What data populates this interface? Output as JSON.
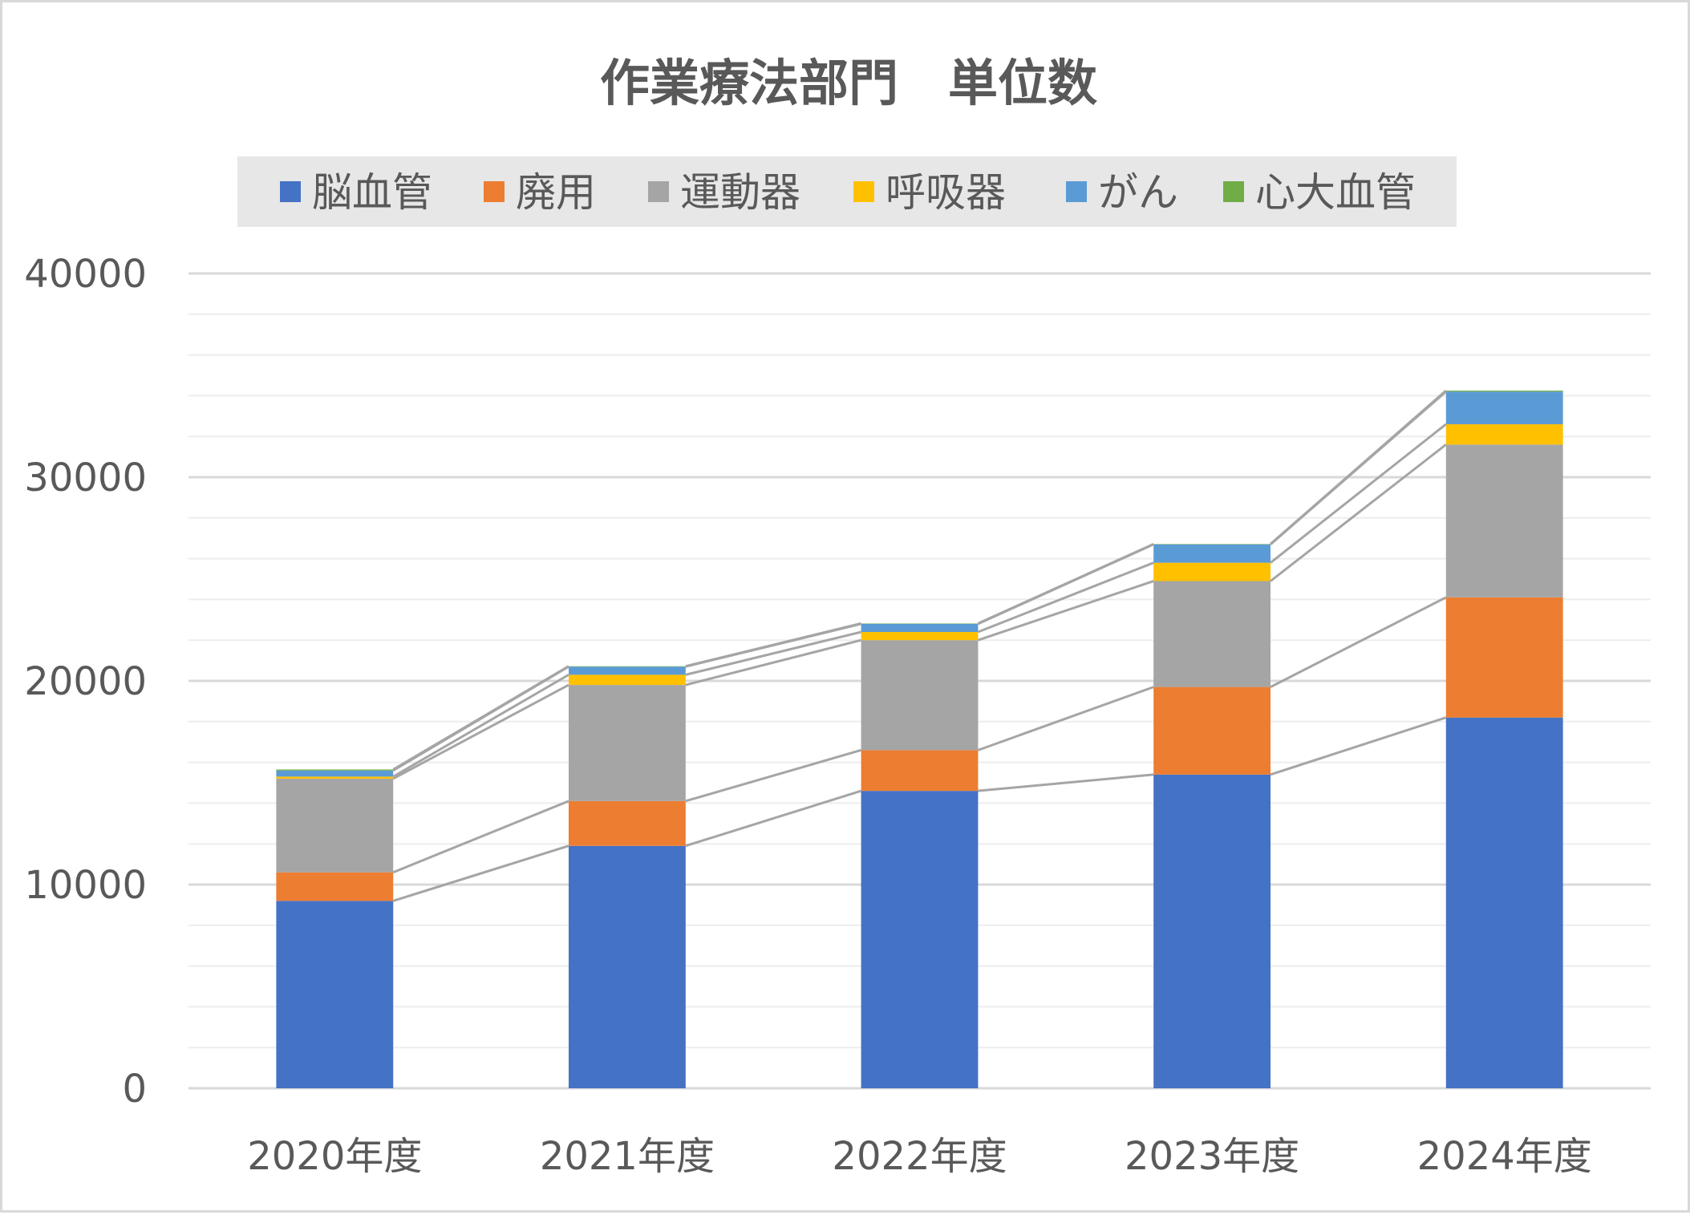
{
  "chart_data": {
    "type": "bar",
    "stacked": true,
    "title": "作業療法部門　単位数",
    "categories": [
      "2020年度",
      "2021年度",
      "2022年度",
      "2023年度",
      "2024年度"
    ],
    "series": [
      {
        "name": "脳血管",
        "color": "#4472c4",
        "values": [
          9200,
          11900,
          14600,
          15400,
          18200
        ]
      },
      {
        "name": "廃用",
        "color": "#ed7d31",
        "values": [
          1400,
          2200,
          2000,
          4300,
          5900
        ]
      },
      {
        "name": "運動器",
        "color": "#a5a5a5",
        "values": [
          4600,
          5700,
          5400,
          5200,
          7500
        ]
      },
      {
        "name": "呼吸器",
        "color": "#ffc000",
        "values": [
          100,
          500,
          400,
          900,
          1000
        ]
      },
      {
        "name": "がん",
        "color": "#5b9bd5",
        "values": [
          300,
          400,
          400,
          900,
          1600
        ]
      },
      {
        "name": "心大血管",
        "color": "#70ad47",
        "values": [
          50,
          20,
          20,
          20,
          50
        ]
      }
    ],
    "ylim": [
      0,
      40000
    ],
    "y_ticks": [
      0,
      10000,
      20000,
      30000,
      40000
    ],
    "y_tick_labels": [
      "0",
      "10000",
      "20000",
      "30000",
      "40000"
    ],
    "minor_step": 2000,
    "grid": true,
    "series_lines": true,
    "legend_position": "top",
    "colors": {
      "grid_major": "#d9d9d9",
      "grid_minor": "#ededed",
      "series_line": "#a5a5a5",
      "legend_bg": "#e7e7e7",
      "text": "#595959"
    }
  }
}
